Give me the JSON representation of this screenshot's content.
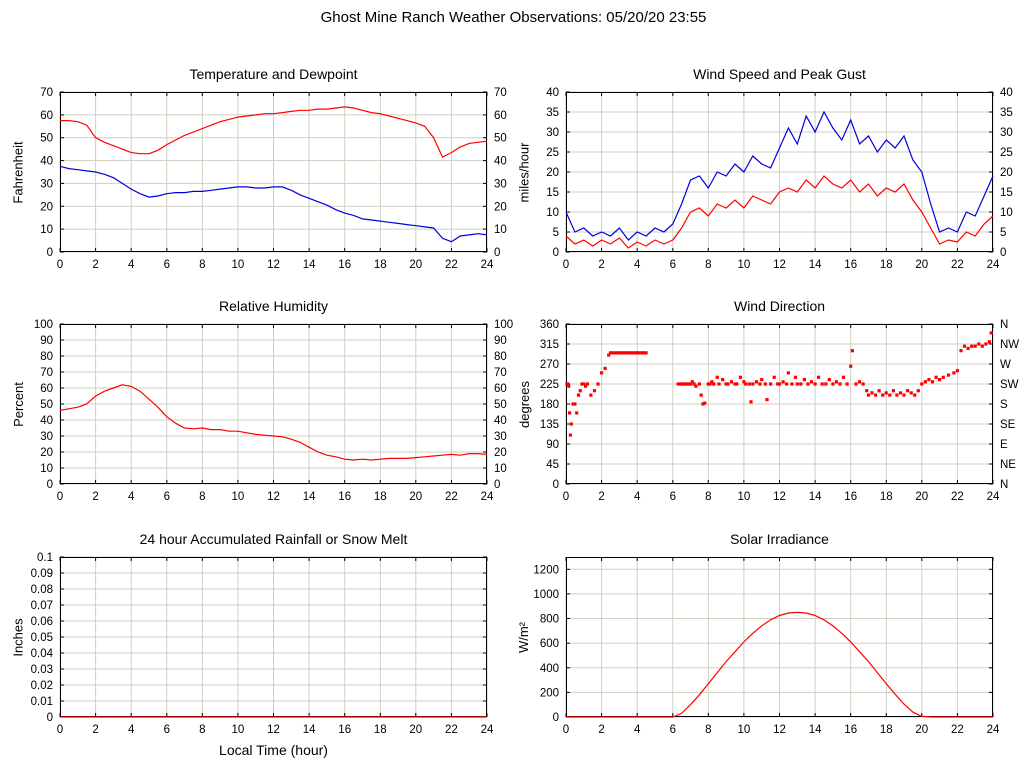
{
  "page_title": "Ghost Mine Ranch Weather Observations: 05/20/20 23:55",
  "colors": {
    "red": "#ff0000",
    "blue": "#0000dd",
    "grid": "#cfcfc0",
    "axis": "#000000",
    "background": "#ffffff"
  },
  "x_axis": {
    "min": 0,
    "max": 24,
    "ticks": [
      0,
      2,
      4,
      6,
      8,
      10,
      12,
      14,
      16,
      18,
      20,
      22,
      24
    ],
    "label": "Local Time (hour)"
  },
  "chart_data": [
    {
      "type": "line",
      "title": "Temperature and Dewpoint",
      "ylabel": "Fahrenheit",
      "ylim": [
        0,
        70
      ],
      "yticks": [
        0,
        10,
        20,
        30,
        40,
        50,
        60,
        70
      ],
      "mirror_right": true,
      "series": [
        {
          "name": "Temperature",
          "color": "red",
          "xstart": 0,
          "xstep": 0.5,
          "y": [
            57.5,
            57.5,
            57,
            55.5,
            50,
            48,
            46.5,
            45,
            43.5,
            43,
            43,
            44.5,
            47,
            49,
            51,
            52.5,
            54,
            55.5,
            57,
            58,
            59,
            59.5,
            60,
            60.5,
            60.5,
            61,
            61.5,
            62,
            62,
            62.5,
            62.5,
            63,
            63.5,
            63,
            62,
            61,
            60.5,
            59.5,
            58.5,
            57.5,
            56.5,
            55,
            50,
            41.5,
            43.5,
            46,
            47.5,
            48,
            48.5
          ]
        },
        {
          "name": "Dewpoint",
          "color": "blue",
          "xstart": 0,
          "xstep": 0.5,
          "y": [
            37.5,
            36.5,
            36,
            35.5,
            35,
            34,
            32.5,
            30,
            27.5,
            25.5,
            24,
            24.5,
            25.5,
            26,
            26,
            26.5,
            26.5,
            27,
            27.5,
            28,
            28.5,
            28.5,
            28,
            28,
            28.5,
            28.5,
            27,
            25,
            23.5,
            22,
            20.5,
            18.5,
            17,
            16,
            14.5,
            14,
            13.5,
            13,
            12.5,
            12,
            11.5,
            11,
            10.5,
            6,
            4.5,
            7,
            7.5,
            8,
            7.5
          ]
        }
      ]
    },
    {
      "type": "line",
      "title": "Wind Speed and Peak Gust",
      "ylabel": "miles/hour",
      "ylim": [
        0,
        40
      ],
      "yticks": [
        0,
        5,
        10,
        15,
        20,
        25,
        30,
        35,
        40
      ],
      "mirror_right": true,
      "series": [
        {
          "name": "Peak Gust",
          "color": "blue",
          "xstart": 0,
          "xstep": 0.5,
          "y": [
            10,
            5,
            6,
            4,
            5,
            4,
            6,
            3,
            5,
            4,
            6,
            5,
            7,
            12,
            18,
            19,
            16,
            20,
            19,
            22,
            20,
            24,
            22,
            21,
            26,
            31,
            27,
            34,
            30,
            35,
            31,
            28,
            33,
            27,
            29,
            25,
            28,
            26,
            29,
            23,
            20,
            12,
            5,
            6,
            5,
            10,
            9,
            14,
            19
          ]
        },
        {
          "name": "Wind Speed",
          "color": "red",
          "xstart": 0,
          "xstep": 0.5,
          "y": [
            4,
            2,
            3,
            1.5,
            3,
            2,
            3.5,
            1,
            2.5,
            1.5,
            3,
            2,
            3,
            6,
            10,
            11,
            9,
            12,
            11,
            13,
            11,
            14,
            13,
            12,
            15,
            16,
            15,
            18,
            16,
            19,
            17,
            16,
            18,
            15,
            17,
            14,
            16,
            15,
            17,
            13,
            10,
            6,
            2,
            3,
            2.5,
            5,
            4,
            7,
            9
          ]
        }
      ]
    },
    {
      "type": "line",
      "title": "Relative Humidity",
      "ylabel": "Percent",
      "ylim": [
        0,
        100
      ],
      "yticks": [
        0,
        10,
        20,
        30,
        40,
        50,
        60,
        70,
        80,
        90,
        100
      ],
      "mirror_right": true,
      "series": [
        {
          "name": "Relative Humidity",
          "color": "red",
          "xstart": 0,
          "xstep": 0.5,
          "y": [
            46,
            47,
            48,
            50,
            55,
            58,
            60,
            62,
            61,
            58,
            53,
            48,
            42,
            38,
            35,
            34.5,
            35,
            34,
            34,
            33,
            33,
            32,
            31,
            30.5,
            30,
            29.5,
            28,
            26,
            23,
            20,
            18,
            17,
            15.5,
            15,
            15.5,
            15,
            15.5,
            16,
            16,
            16,
            16.5,
            17,
            17.5,
            18,
            18.5,
            18,
            19,
            19,
            18.5
          ]
        }
      ]
    },
    {
      "type": "scatter",
      "title": "Wind Direction",
      "ylabel": "degrees",
      "ylim": [
        0,
        360
      ],
      "yticks": [
        0,
        45,
        90,
        135,
        180,
        225,
        270,
        315,
        360
      ],
      "mirror_right": false,
      "yticks_right": [
        {
          "v": 0,
          "l": "N"
        },
        {
          "v": 45,
          "l": "NE"
        },
        {
          "v": 90,
          "l": "E"
        },
        {
          "v": 135,
          "l": "SE"
        },
        {
          "v": 180,
          "l": "S"
        },
        {
          "v": 225,
          "l": "SW"
        },
        {
          "v": 270,
          "l": "W"
        },
        {
          "v": 315,
          "l": "NW"
        },
        {
          "v": 360,
          "l": "N"
        }
      ],
      "series": [
        {
          "name": "Wind Direction",
          "color": "red",
          "points": [
            [
              0.05,
              225
            ],
            [
              0.1,
              225
            ],
            [
              0.15,
              220
            ],
            [
              0.2,
              160
            ],
            [
              0.25,
              110
            ],
            [
              0.3,
              135
            ],
            [
              0.4,
              180
            ],
            [
              0.5,
              180
            ],
            [
              0.6,
              160
            ],
            [
              0.7,
              200
            ],
            [
              0.8,
              210
            ],
            [
              0.9,
              225
            ],
            [
              1.0,
              225
            ],
            [
              1.1,
              220
            ],
            [
              1.2,
              225
            ],
            [
              1.4,
              200
            ],
            [
              1.6,
              210
            ],
            [
              1.8,
              225
            ],
            [
              2.0,
              250
            ],
            [
              2.2,
              260
            ],
            [
              2.4,
              290
            ],
            [
              2.5,
              295
            ],
            [
              2.6,
              295
            ],
            [
              2.7,
              295
            ],
            [
              2.8,
              295
            ],
            [
              2.9,
              295
            ],
            [
              3.0,
              295
            ],
            [
              3.1,
              295
            ],
            [
              3.2,
              295
            ],
            [
              3.3,
              295
            ],
            [
              3.4,
              295
            ],
            [
              3.5,
              295
            ],
            [
              3.6,
              295
            ],
            [
              3.7,
              295
            ],
            [
              3.8,
              295
            ],
            [
              3.9,
              295
            ],
            [
              4.0,
              295
            ],
            [
              4.1,
              295
            ],
            [
              4.2,
              295
            ],
            [
              4.3,
              295
            ],
            [
              4.4,
              295
            ],
            [
              4.5,
              295
            ],
            [
              6.3,
              225
            ],
            [
              6.4,
              225
            ],
            [
              6.5,
              225
            ],
            [
              6.6,
              225
            ],
            [
              6.7,
              225
            ],
            [
              6.8,
              225
            ],
            [
              6.9,
              225
            ],
            [
              7.0,
              225
            ],
            [
              7.1,
              230
            ],
            [
              7.2,
              225
            ],
            [
              7.3,
              220
            ],
            [
              7.5,
              225
            ],
            [
              7.6,
              200
            ],
            [
              7.7,
              180
            ],
            [
              7.8,
              182
            ],
            [
              8.0,
              225
            ],
            [
              8.1,
              225
            ],
            [
              8.2,
              230
            ],
            [
              8.3,
              225
            ],
            [
              8.5,
              240
            ],
            [
              8.6,
              225
            ],
            [
              8.8,
              235
            ],
            [
              9.0,
              225
            ],
            [
              9.1,
              225
            ],
            [
              9.3,
              230
            ],
            [
              9.5,
              225
            ],
            [
              9.6,
              225
            ],
            [
              9.8,
              240
            ],
            [
              10.0,
              230
            ],
            [
              10.1,
              225
            ],
            [
              10.3,
              225
            ],
            [
              10.4,
              185
            ],
            [
              10.5,
              225
            ],
            [
              10.7,
              230
            ],
            [
              10.9,
              225
            ],
            [
              11.0,
              235
            ],
            [
              11.2,
              225
            ],
            [
              11.3,
              190
            ],
            [
              11.5,
              225
            ],
            [
              11.7,
              240
            ],
            [
              11.9,
              225
            ],
            [
              12.0,
              225
            ],
            [
              12.2,
              230
            ],
            [
              12.4,
              225
            ],
            [
              12.5,
              250
            ],
            [
              12.7,
              225
            ],
            [
              12.9,
              240
            ],
            [
              13.0,
              225
            ],
            [
              13.2,
              225
            ],
            [
              13.4,
              235
            ],
            [
              13.6,
              225
            ],
            [
              13.8,
              230
            ],
            [
              14.0,
              225
            ],
            [
              14.2,
              240
            ],
            [
              14.4,
              225
            ],
            [
              14.6,
              225
            ],
            [
              14.8,
              235
            ],
            [
              15.0,
              225
            ],
            [
              15.2,
              230
            ],
            [
              15.4,
              225
            ],
            [
              15.6,
              240
            ],
            [
              15.8,
              225
            ],
            [
              16.0,
              265
            ],
            [
              16.1,
              300
            ],
            [
              16.3,
              225
            ],
            [
              16.5,
              230
            ],
            [
              16.7,
              225
            ],
            [
              16.9,
              210
            ],
            [
              17.0,
              200
            ],
            [
              17.2,
              205
            ],
            [
              17.4,
              200
            ],
            [
              17.6,
              210
            ],
            [
              17.8,
              200
            ],
            [
              18.0,
              205
            ],
            [
              18.2,
              200
            ],
            [
              18.4,
              210
            ],
            [
              18.6,
              200
            ],
            [
              18.8,
              205
            ],
            [
              19.0,
              200
            ],
            [
              19.2,
              210
            ],
            [
              19.4,
              205
            ],
            [
              19.6,
              200
            ],
            [
              19.8,
              210
            ],
            [
              20.0,
              225
            ],
            [
              20.2,
              230
            ],
            [
              20.4,
              235
            ],
            [
              20.6,
              230
            ],
            [
              20.8,
              240
            ],
            [
              21.0,
              235
            ],
            [
              21.2,
              240
            ],
            [
              21.5,
              245
            ],
            [
              21.8,
              250
            ],
            [
              22.0,
              255
            ],
            [
              22.2,
              300
            ],
            [
              22.4,
              310
            ],
            [
              22.6,
              305
            ],
            [
              22.8,
              310
            ],
            [
              23.0,
              310
            ],
            [
              23.2,
              315
            ],
            [
              23.4,
              310
            ],
            [
              23.6,
              315
            ],
            [
              23.8,
              320
            ],
            [
              23.9,
              340
            ]
          ]
        }
      ]
    },
    {
      "type": "line",
      "title": "24 hour Accumulated Rainfall or Snow Melt",
      "ylabel": "Inches",
      "ylim": [
        0,
        0.1
      ],
      "yticks": [
        0,
        0.01,
        0.02,
        0.03,
        0.04,
        0.05,
        0.06,
        0.07,
        0.08,
        0.09,
        0.1
      ],
      "mirror_right": false,
      "series": [
        {
          "name": "Rainfall",
          "color": "red",
          "xstart": 0,
          "xstep": 24,
          "y": [
            0,
            0
          ]
        }
      ]
    },
    {
      "type": "line",
      "title": "Solar Irradiance",
      "ylabel": "W/m²",
      "ylim": [
        0,
        1300
      ],
      "yticks": [
        0,
        200,
        400,
        600,
        800,
        1000,
        1200
      ],
      "mirror_right": false,
      "series": [
        {
          "name": "Solar Irradiance",
          "color": "red",
          "xstart": 0,
          "xstep": 0.5,
          "y": [
            0,
            0,
            0,
            0,
            0,
            0,
            0,
            0,
            0,
            0,
            0,
            0,
            0,
            30,
            100,
            180,
            270,
            360,
            450,
            530,
            610,
            680,
            740,
            790,
            825,
            845,
            850,
            845,
            825,
            790,
            740,
            680,
            610,
            530,
            450,
            360,
            270,
            185,
            105,
            40,
            5,
            0,
            0,
            0,
            0,
            0,
            0,
            0,
            0
          ]
        }
      ]
    }
  ]
}
